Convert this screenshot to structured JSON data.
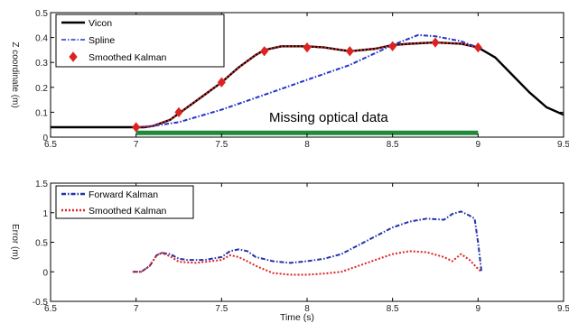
{
  "chart_data": [
    {
      "type": "line",
      "ylabel": "Z coordinate (m)",
      "xlim": [
        6.5,
        9.5
      ],
      "ylim": [
        0,
        0.5
      ],
      "xticks": [
        "6.5",
        "7",
        "7.5",
        "8",
        "8.5",
        "9",
        "9.5"
      ],
      "yticks": [
        "0",
        "0.1",
        "0.2",
        "0.3",
        "0.4",
        "0.5"
      ],
      "grid": false,
      "legend_position": "top-left",
      "annotation": "Missing optical data",
      "missing_interval": [
        7.0,
        9.0
      ],
      "series": [
        {
          "name": "Vicon",
          "color": "#000000",
          "style": "solid",
          "points": [
            [
              6.5,
              0.04
            ],
            [
              6.9,
              0.04
            ],
            [
              7.0,
              0.04
            ],
            [
              7.05,
              0.04
            ],
            [
              7.1,
              0.045
            ],
            [
              7.2,
              0.07
            ],
            [
              7.3,
              0.12
            ],
            [
              7.4,
              0.17
            ],
            [
              7.5,
              0.22
            ],
            [
              7.6,
              0.28
            ],
            [
              7.7,
              0.33
            ],
            [
              7.75,
              0.35
            ],
            [
              7.85,
              0.365
            ],
            [
              8.0,
              0.365
            ],
            [
              8.1,
              0.36
            ],
            [
              8.2,
              0.35
            ],
            [
              8.25,
              0.345
            ],
            [
              8.4,
              0.355
            ],
            [
              8.5,
              0.37
            ],
            [
              8.6,
              0.375
            ],
            [
              8.75,
              0.38
            ],
            [
              8.9,
              0.375
            ],
            [
              9.0,
              0.36
            ],
            [
              9.1,
              0.32
            ],
            [
              9.2,
              0.25
            ],
            [
              9.3,
              0.18
            ],
            [
              9.4,
              0.12
            ],
            [
              9.5,
              0.09
            ]
          ]
        },
        {
          "name": "Spline",
          "color": "#2233cc",
          "style": "dashdot",
          "points": [
            [
              7.0,
              0.04
            ],
            [
              7.1,
              0.045
            ],
            [
              7.25,
              0.06
            ],
            [
              7.5,
              0.11
            ],
            [
              7.75,
              0.17
            ],
            [
              8.0,
              0.23
            ],
            [
              8.25,
              0.29
            ],
            [
              8.5,
              0.37
            ],
            [
              8.65,
              0.41
            ],
            [
              8.75,
              0.405
            ],
            [
              8.9,
              0.385
            ],
            [
              9.0,
              0.36
            ]
          ]
        },
        {
          "name": "Smoothed Kalman",
          "color": "#dd2222",
          "style": "dotted-with-diamonds",
          "points": [
            [
              7.0,
              0.04
            ],
            [
              7.1,
              0.045
            ],
            [
              7.2,
              0.07
            ],
            [
              7.3,
              0.12
            ],
            [
              7.4,
              0.17
            ],
            [
              7.5,
              0.22
            ],
            [
              7.6,
              0.28
            ],
            [
              7.7,
              0.33
            ],
            [
              7.75,
              0.35
            ],
            [
              7.85,
              0.365
            ],
            [
              8.0,
              0.365
            ],
            [
              8.1,
              0.36
            ],
            [
              8.2,
              0.35
            ],
            [
              8.25,
              0.345
            ],
            [
              8.4,
              0.355
            ],
            [
              8.5,
              0.37
            ],
            [
              8.6,
              0.375
            ],
            [
              8.75,
              0.38
            ],
            [
              8.9,
              0.375
            ],
            [
              9.0,
              0.36
            ]
          ],
          "markers": [
            [
              7.0,
              0.04
            ],
            [
              7.25,
              0.1
            ],
            [
              7.5,
              0.22
            ],
            [
              7.75,
              0.345
            ],
            [
              8.0,
              0.36
            ],
            [
              8.25,
              0.345
            ],
            [
              8.5,
              0.365
            ],
            [
              8.75,
              0.38
            ],
            [
              9.0,
              0.36
            ]
          ]
        }
      ]
    },
    {
      "type": "line",
      "xlabel": "Time (s)",
      "ylabel": "Error (m)",
      "xlim": [
        6.5,
        9.5
      ],
      "ylim": [
        -0.5,
        1.5
      ],
      "xticks": [
        "6.5",
        "7",
        "7.5",
        "8",
        "8.5",
        "9",
        "9.5"
      ],
      "yticks": [
        "-0.5",
        "0",
        "0.5",
        "1",
        "1.5"
      ],
      "grid": false,
      "legend_position": "top-left",
      "series": [
        {
          "name": "Forward Kalman",
          "color": "#2233aa",
          "style": "dashdot",
          "points": [
            [
              6.98,
              0.0
            ],
            [
              7.03,
              0.0
            ],
            [
              7.08,
              0.1
            ],
            [
              7.12,
              0.28
            ],
            [
              7.15,
              0.32
            ],
            [
              7.2,
              0.3
            ],
            [
              7.25,
              0.22
            ],
            [
              7.3,
              0.2
            ],
            [
              7.4,
              0.2
            ],
            [
              7.5,
              0.25
            ],
            [
              7.55,
              0.35
            ],
            [
              7.6,
              0.38
            ],
            [
              7.65,
              0.35
            ],
            [
              7.7,
              0.25
            ],
            [
              7.8,
              0.18
            ],
            [
              7.9,
              0.15
            ],
            [
              8.0,
              0.18
            ],
            [
              8.1,
              0.22
            ],
            [
              8.2,
              0.3
            ],
            [
              8.3,
              0.45
            ],
            [
              8.4,
              0.6
            ],
            [
              8.5,
              0.75
            ],
            [
              8.6,
              0.85
            ],
            [
              8.7,
              0.9
            ],
            [
              8.8,
              0.88
            ],
            [
              8.85,
              0.98
            ],
            [
              8.9,
              1.02
            ],
            [
              8.95,
              0.95
            ],
            [
              8.98,
              0.9
            ],
            [
              9.0,
              0.5
            ],
            [
              9.02,
              0.0
            ]
          ]
        },
        {
          "name": "Smoothed Kalman",
          "color": "#dd2222",
          "style": "dotted",
          "points": [
            [
              6.98,
              0.0
            ],
            [
              7.03,
              0.0
            ],
            [
              7.08,
              0.1
            ],
            [
              7.12,
              0.28
            ],
            [
              7.15,
              0.32
            ],
            [
              7.2,
              0.26
            ],
            [
              7.25,
              0.17
            ],
            [
              7.35,
              0.15
            ],
            [
              7.5,
              0.2
            ],
            [
              7.55,
              0.28
            ],
            [
              7.6,
              0.25
            ],
            [
              7.65,
              0.18
            ],
            [
              7.7,
              0.1
            ],
            [
              7.8,
              -0.02
            ],
            [
              7.9,
              -0.05
            ],
            [
              8.0,
              -0.05
            ],
            [
              8.1,
              -0.03
            ],
            [
              8.2,
              0.0
            ],
            [
              8.3,
              0.1
            ],
            [
              8.4,
              0.2
            ],
            [
              8.5,
              0.3
            ],
            [
              8.6,
              0.35
            ],
            [
              8.7,
              0.33
            ],
            [
              8.8,
              0.25
            ],
            [
              8.85,
              0.18
            ],
            [
              8.9,
              0.3
            ],
            [
              8.95,
              0.2
            ],
            [
              9.0,
              0.05
            ],
            [
              9.02,
              0.0
            ]
          ]
        }
      ]
    }
  ]
}
